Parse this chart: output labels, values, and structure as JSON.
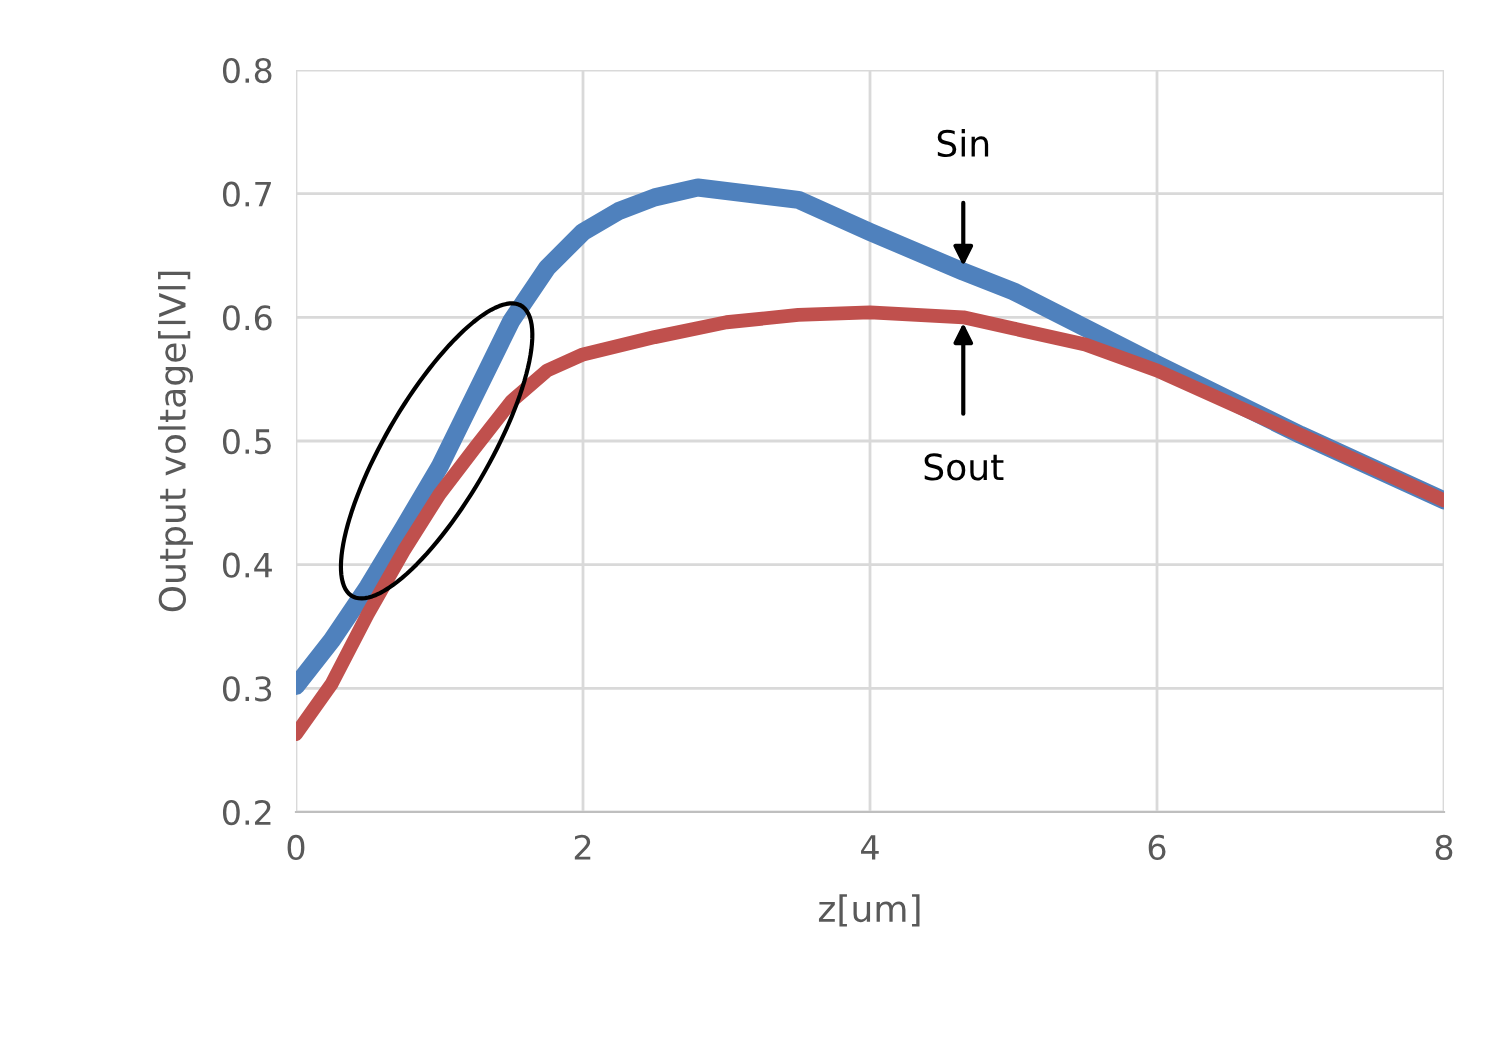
{
  "chart_data": {
    "type": "line",
    "xlabel": "z[um]",
    "ylabel": "Output voltage[lVl]",
    "series": [
      {
        "color": "#4f81bd",
        "x": [
          0,
          0.25,
          0.5,
          0.75,
          1,
          1.25,
          1.5,
          1.75,
          2,
          2.25,
          2.5,
          2.8,
          3.5,
          4,
          4.65,
          5,
          6,
          7,
          8
        ],
        "values": [
          0.302,
          0.339,
          0.382,
          0.43,
          0.479,
          0.538,
          0.597,
          0.64,
          0.669,
          0.686,
          0.697,
          0.705,
          0.695,
          0.669,
          0.637,
          0.621,
          0.562,
          0.505,
          0.452
        ]
      },
      {
        "color": "#c0504d",
        "x": [
          0,
          0.25,
          0.5,
          0.75,
          1,
          1.25,
          1.5,
          1.75,
          2,
          2.5,
          3,
          3.5,
          4,
          4.65,
          5,
          5.5,
          6,
          7,
          8
        ],
        "values": [
          0.263,
          0.304,
          0.36,
          0.411,
          0.457,
          0.495,
          0.532,
          0.557,
          0.57,
          0.584,
          0.596,
          0.602,
          0.604,
          0.6,
          0.591,
          0.578,
          0.557,
          0.505,
          0.452
        ]
      }
    ],
    "annotations": [
      {
        "text": "Sin",
        "x": 4.65,
        "y": 0.637
      },
      {
        "text": "Sout",
        "x": 4.65,
        "y": 0.6
      }
    ],
    "xlim": [
      0,
      8
    ],
    "xticks": [
      0,
      2,
      4,
      6,
      8
    ],
    "ylim": [
      0.2,
      0.8
    ],
    "yticks": [
      0.2,
      0.3,
      0.4,
      0.5,
      0.6,
      0.7,
      0.8
    ],
    "grid": true,
    "marker": "none",
    "line_style": "solid"
  }
}
